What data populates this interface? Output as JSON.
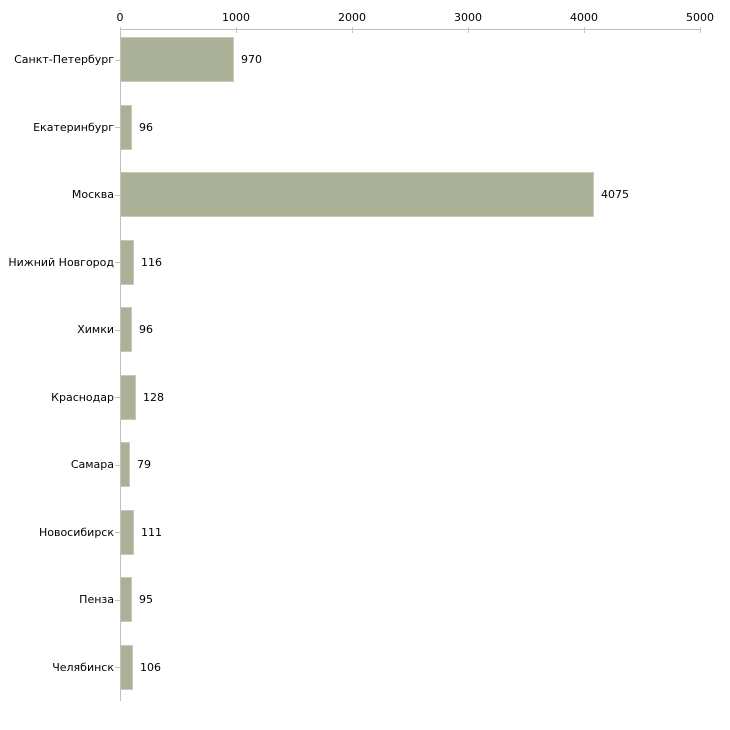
{
  "chart_data": {
    "type": "bar",
    "orientation": "horizontal",
    "title": "",
    "xlabel": "",
    "ylabel": "",
    "categories": [
      "Санкт-Петербург",
      "Екатеринбург",
      "Москва",
      "Нижний Новгород",
      "Химки",
      "Краснодар",
      "Самара",
      "Новосибирск",
      "Пенза",
      "Челябинск"
    ],
    "values": [
      970,
      96,
      4075,
      116,
      96,
      128,
      79,
      111,
      95,
      106
    ],
    "x_ticks": [
      0,
      1000,
      2000,
      3000,
      4000,
      5000
    ],
    "xlim": [
      0,
      5000
    ],
    "axis_position": "top",
    "grid": false,
    "legend": false,
    "value_labels_shown": true,
    "bar_color": "#abb197",
    "bar_edge_color": "#c6cab6",
    "axis_line_color": "#c0c0c0",
    "tick_color": "#c8c89e",
    "text_color": "#000000",
    "background": "#ffffff"
  }
}
